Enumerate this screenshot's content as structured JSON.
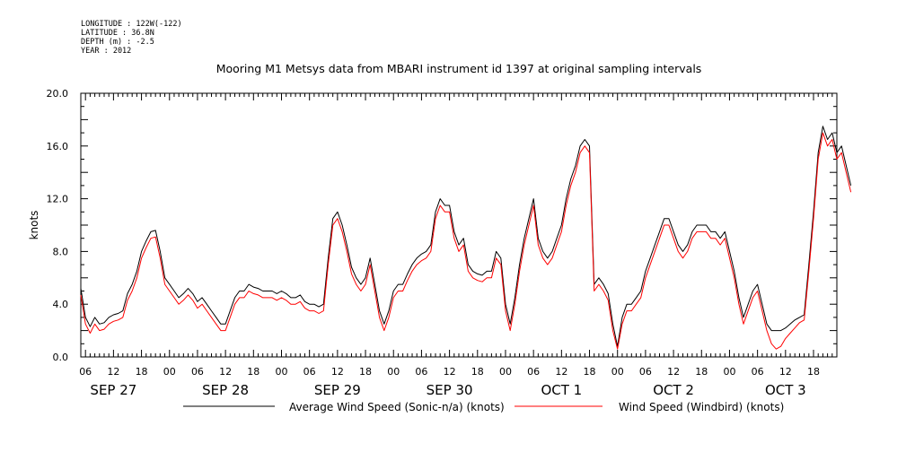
{
  "header": {
    "longitude": "LONGITUDE : 122W(-122)",
    "latitude": "LATITUDE : 36.8N",
    "depth": "DEPTH (m) : -2.5",
    "year": "YEAR : 2012"
  },
  "chart_data": {
    "type": "line",
    "title": "Mooring M1 Metsys data from MBARI instrument id 1397 at original sampling intervals",
    "xlabel": "",
    "ylabel": "knots",
    "ylim": [
      0,
      20
    ],
    "y_ticks": [
      "0.0",
      "4.0",
      "8.0",
      "12.0",
      "16.0",
      "20.0"
    ],
    "x_range_hours": "Sep 27 05:00 to Oct 3 23:00 (2012)",
    "hour_tick_labels": [
      "06",
      "12",
      "18",
      "00",
      "06",
      "12",
      "18",
      "00",
      "06",
      "12",
      "18",
      "00",
      "06",
      "12",
      "18",
      "00",
      "06",
      "12",
      "18",
      "00",
      "06",
      "12",
      "18",
      "00",
      "06",
      "12",
      "18"
    ],
    "day_labels": [
      "SEP 27",
      "SEP 28",
      "SEP 29",
      "SEP 30",
      "OCT  1",
      "OCT  2",
      "OCT  3"
    ],
    "grid": false,
    "legend_position": "bottom",
    "series": [
      {
        "name": "Average Wind Speed (Sonic-n/a) (knots)",
        "color": "#000000",
        "time_step_hours": 1,
        "start": "2012-09-27 05:00",
        "values": [
          5.2,
          3.0,
          2.3,
          3.0,
          2.5,
          2.6,
          3.0,
          3.2,
          3.3,
          3.5,
          4.8,
          5.5,
          6.5,
          8.0,
          8.8,
          9.5,
          9.6,
          8.0,
          6.0,
          5.5,
          5.0,
          4.5,
          4.8,
          5.2,
          4.8,
          4.2,
          4.5,
          4.0,
          3.5,
          3.0,
          2.5,
          2.5,
          3.5,
          4.5,
          5.0,
          5.0,
          5.5,
          5.3,
          5.2,
          5.0,
          5.0,
          5.0,
          4.8,
          5.0,
          4.8,
          4.5,
          4.5,
          4.7,
          4.2,
          4.0,
          4.0,
          3.8,
          4.0,
          7.5,
          10.5,
          11.0,
          10.0,
          8.5,
          6.8,
          6.0,
          5.5,
          6.0,
          7.5,
          5.5,
          3.5,
          2.5,
          3.5,
          5.0,
          5.5,
          5.5,
          6.3,
          7.0,
          7.5,
          7.8,
          8.0,
          8.5,
          11.0,
          12.0,
          11.5,
          11.5,
          9.5,
          8.5,
          9.0,
          7.0,
          6.5,
          6.3,
          6.2,
          6.5,
          6.5,
          8.0,
          7.5,
          4.0,
          2.5,
          4.5,
          7.0,
          9.0,
          10.5,
          12.0,
          9.0,
          8.0,
          7.5,
          8.0,
          9.0,
          10.0,
          12.0,
          13.5,
          14.5,
          16.0,
          16.5,
          16.0,
          5.5,
          6.0,
          5.5,
          4.8,
          2.5,
          0.8,
          3.0,
          4.0,
          4.0,
          4.5,
          5.0,
          6.5,
          7.5,
          8.5,
          9.5,
          10.5,
          10.5,
          9.5,
          8.5,
          8.0,
          8.5,
          9.5,
          10.0,
          10.0,
          10.0,
          9.5,
          9.5,
          9.0,
          9.5,
          8.0,
          6.5,
          4.5,
          3.0,
          4.0,
          5.0,
          5.5,
          4.0,
          2.5,
          2.0,
          2.0,
          2.0,
          2.2,
          2.5,
          2.8,
          3.0,
          3.2,
          7.0,
          11.0,
          15.5,
          17.5,
          16.5,
          17.0,
          15.5,
          16.0,
          14.5,
          13.0
        ]
      },
      {
        "name": "Wind Speed (Windbird) (knots)",
        "color": "#ff0000",
        "time_step_hours": 1,
        "start": "2012-09-27 05:00",
        "values": [
          4.7,
          2.5,
          1.8,
          2.5,
          2.0,
          2.1,
          2.5,
          2.7,
          2.8,
          3.0,
          4.3,
          5.0,
          6.0,
          7.5,
          8.3,
          9.0,
          9.1,
          7.5,
          5.5,
          5.0,
          4.5,
          4.0,
          4.3,
          4.7,
          4.3,
          3.7,
          4.0,
          3.5,
          3.0,
          2.5,
          2.0,
          2.0,
          3.0,
          4.0,
          4.5,
          4.5,
          5.0,
          4.8,
          4.7,
          4.5,
          4.5,
          4.5,
          4.3,
          4.5,
          4.3,
          4.0,
          4.0,
          4.2,
          3.7,
          3.5,
          3.5,
          3.3,
          3.5,
          7.0,
          10.0,
          10.5,
          9.5,
          8.0,
          6.3,
          5.5,
          5.0,
          5.5,
          7.0,
          5.0,
          3.0,
          2.0,
          3.0,
          4.5,
          5.0,
          5.0,
          5.8,
          6.5,
          7.0,
          7.3,
          7.5,
          8.0,
          10.5,
          11.5,
          11.0,
          11.0,
          9.0,
          8.0,
          8.5,
          6.5,
          6.0,
          5.8,
          5.7,
          6.0,
          6.0,
          7.5,
          7.0,
          3.5,
          2.0,
          4.0,
          6.5,
          8.5,
          10.0,
          11.5,
          8.5,
          7.5,
          7.0,
          7.5,
          8.5,
          9.5,
          11.5,
          13.0,
          14.0,
          15.5,
          16.0,
          15.5,
          5.0,
          5.5,
          5.0,
          4.3,
          2.0,
          0.6,
          2.5,
          3.5,
          3.5,
          4.0,
          4.5,
          6.0,
          7.0,
          8.0,
          9.0,
          10.0,
          10.0,
          9.0,
          8.0,
          7.5,
          8.0,
          9.0,
          9.5,
          9.5,
          9.5,
          9.0,
          9.0,
          8.5,
          9.0,
          7.5,
          6.0,
          4.0,
          2.5,
          3.5,
          4.5,
          5.0,
          3.5,
          2.0,
          1.0,
          0.6,
          0.8,
          1.4,
          1.8,
          2.2,
          2.6,
          2.8,
          6.5,
          10.5,
          15.0,
          17.0,
          16.0,
          16.5,
          15.0,
          15.5,
          14.0,
          12.5
        ]
      }
    ]
  }
}
